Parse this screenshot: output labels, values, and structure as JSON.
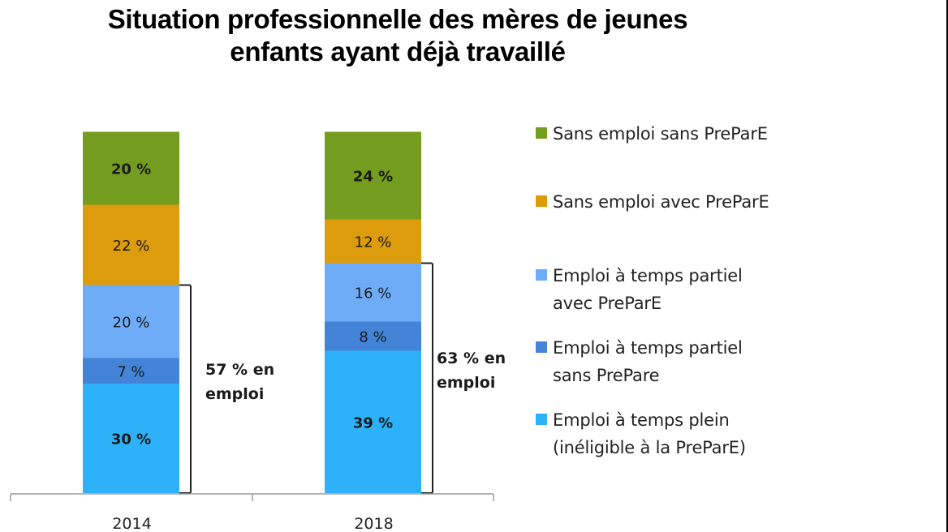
{
  "title": {
    "line1": "Situation professionnelle des mères de jeunes",
    "line2": "enfants ayant déjà travaillé"
  },
  "chart_data": {
    "type": "bar",
    "stacked": true,
    "title": "Situation professionnelle des mères de jeunes enfants ayant déjà travaillé",
    "xlabel": "",
    "ylabel": "",
    "categories": [
      "2014",
      "2018"
    ],
    "ylim": [
      0,
      100
    ],
    "grid": false,
    "legend_position": "right",
    "series": [
      {
        "name": "Emploi à temps plein\n(inéligible à la PreParE)",
        "color": "#2db2fa",
        "values": [
          30,
          39
        ],
        "labels": [
          "30 %",
          "39 %"
        ],
        "bold_labels": [
          true,
          true
        ]
      },
      {
        "name": "Emploi à temps partiel\nsans PrePare",
        "color": "#4384d8",
        "values": [
          7,
          8
        ],
        "labels": [
          "7 %",
          "8 %"
        ],
        "bold_labels": [
          false,
          false
        ]
      },
      {
        "name": "Emploi à temps partiel\navec PreParE",
        "color": "#6eacf8",
        "values": [
          20,
          16
        ],
        "labels": [
          "20 %",
          "16 %"
        ],
        "bold_labels": [
          false,
          false
        ]
      },
      {
        "name": "Sans emploi avec PreParE",
        "color": "#dc9c0c",
        "values": [
          22,
          12
        ],
        "labels": [
          "22 %",
          "12 %"
        ],
        "bold_labels": [
          false,
          false
        ]
      },
      {
        "name": "Sans emploi sans PreParE",
        "color": "#749c1e",
        "values": [
          20,
          24
        ],
        "labels": [
          "20 %",
          "24 %"
        ],
        "bold_labels": [
          true,
          true
        ]
      }
    ],
    "annotations": [
      {
        "category": "2014",
        "text_line1": "57 % en",
        "text_line2": "emploi",
        "range": [
          0,
          57
        ]
      },
      {
        "category": "2018",
        "text_line1": "63 % en",
        "text_line2": "emploi",
        "range": [
          0,
          63
        ]
      }
    ],
    "legend_order": [
      "Sans emploi sans PreParE",
      "Sans emploi avec PreParE",
      "Emploi à temps partiel\navec PreParE",
      "Emploi à temps partiel\nsans PrePare",
      "Emploi à temps plein\n(inéligible à la PreParE)"
    ]
  }
}
